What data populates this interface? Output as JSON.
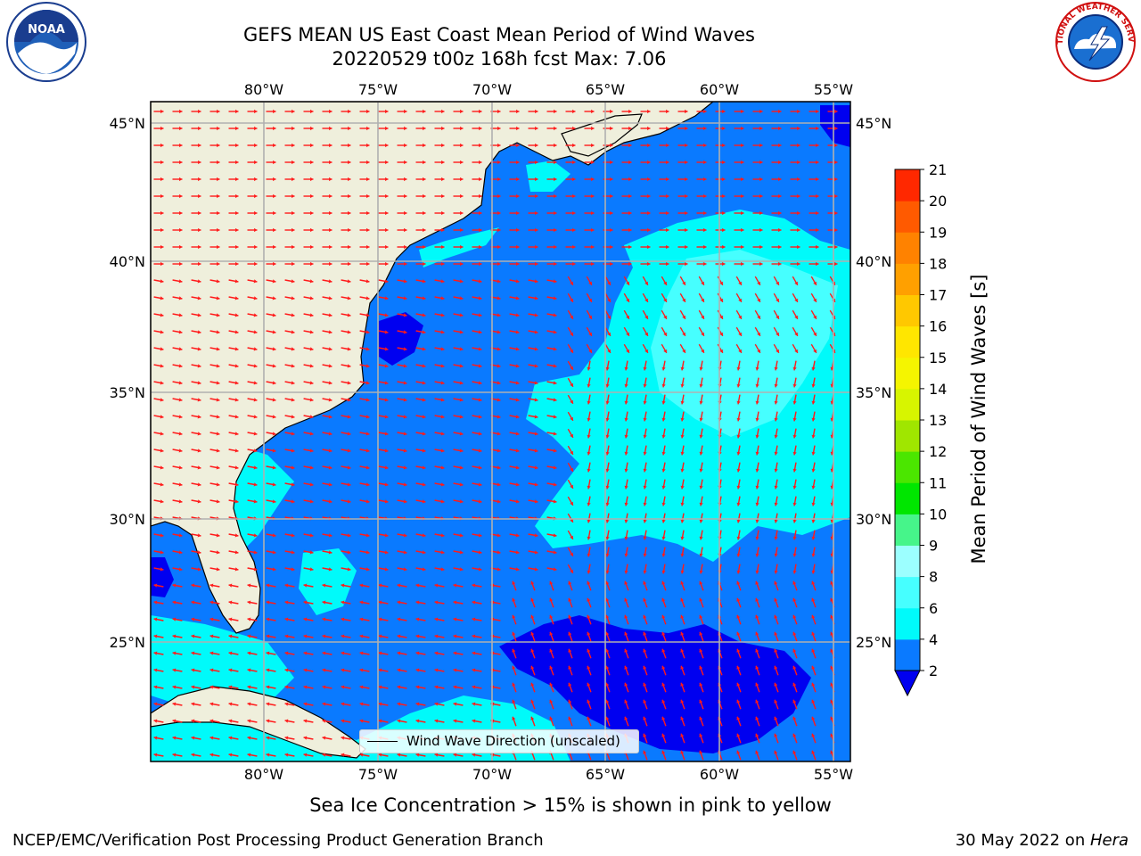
{
  "header": {
    "title": "GEFS MEAN US East Coast Mean Period of Wind Waves",
    "subtitle": "20220529 t00z 168h fcst   Max: 7.06"
  },
  "logos": {
    "left": {
      "icon": "noaa-logo",
      "text": "NOAA"
    },
    "right": {
      "icon": "nws-logo",
      "text": "NATIONAL WEATHER SERVICE"
    }
  },
  "map": {
    "lon_labels": [
      "80°W",
      "75°W",
      "70°W",
      "65°W",
      "60°W",
      "55°W"
    ],
    "lat_labels": [
      "45°N",
      "40°N",
      "35°N",
      "30°N",
      "25°N"
    ],
    "legend_label": "Wind Wave Direction (unscaled)",
    "colors": {
      "land": "#efefdc",
      "ocean_2_4": "#0a7aff",
      "ocean_below_2": "#0000f0",
      "ocean_4_6": "#00fafa",
      "ocean_6_8": "#46ffff",
      "grid": "#b0b0b0",
      "arrow": "#ff1a1a"
    }
  },
  "colorbar": {
    "label": "Mean Period of Wind Waves [s]",
    "ticks": [
      "2",
      "4",
      "6",
      "8",
      "9",
      "10",
      "11",
      "12",
      "13",
      "14",
      "15",
      "16",
      "17",
      "18",
      "19",
      "20",
      "21"
    ],
    "colors": [
      "#0a7aff",
      "#00fafa",
      "#46ffff",
      "#9cffff",
      "#46f58a",
      "#00e600",
      "#4be600",
      "#a0e600",
      "#d7f500",
      "#f5f500",
      "#ffe600",
      "#ffc800",
      "#ffa000",
      "#ff8200",
      "#ff5a00",
      "#ff2800"
    ],
    "extend_below_color": "#0000f0"
  },
  "footer": {
    "sea_ice_note": "Sea Ice Concentration > 15% is shown in pink to yellow",
    "credit": "NCEP/EMC/Verification Post Processing Product Generation Branch",
    "date_prefix": "30 May 2022 on ",
    "machine": "Hera"
  }
}
